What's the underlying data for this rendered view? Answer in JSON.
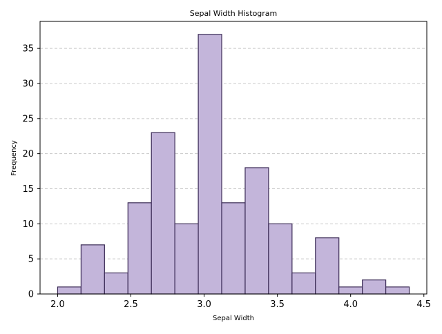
{
  "chart_data": {
    "type": "bar",
    "title": "Sepal Width Histogram",
    "xlabel": "Sepal Width",
    "ylabel": "Frequency",
    "xlim": [
      1.88,
      4.52
    ],
    "ylim": [
      0,
      38.85
    ],
    "xticks": [
      2.0,
      2.5,
      3.0,
      3.5,
      4.0,
      4.5
    ],
    "xtick_labels": [
      "2.0",
      "2.5",
      "3.0",
      "3.5",
      "4.0",
      "4.5"
    ],
    "yticks": [
      0,
      5,
      10,
      15,
      20,
      25,
      30,
      35
    ],
    "ytick_labels": [
      "0",
      "5",
      "10",
      "15",
      "20",
      "25",
      "30",
      "35"
    ],
    "bin_edges": [
      2.0,
      2.16,
      2.32,
      2.48,
      2.64,
      2.8,
      2.96,
      3.12,
      3.28,
      3.44,
      3.6,
      3.76,
      3.92,
      4.08,
      4.24,
      4.4
    ],
    "values": [
      1,
      7,
      3,
      13,
      23,
      10,
      37,
      13,
      18,
      10,
      3,
      8,
      1,
      2,
      1
    ],
    "grid": "y-dashed",
    "colors": {
      "bar_fill": "#c3b5da",
      "bar_edge": "#3a2a55",
      "grid": "#c8c8c8",
      "axis": "#000000"
    }
  }
}
